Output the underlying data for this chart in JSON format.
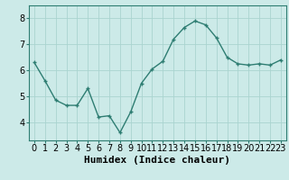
{
  "x": [
    0,
    1,
    2,
    3,
    4,
    5,
    6,
    7,
    8,
    9,
    10,
    11,
    12,
    13,
    14,
    15,
    16,
    17,
    18,
    19,
    20,
    21,
    22,
    23
  ],
  "y": [
    6.3,
    5.6,
    4.85,
    4.65,
    4.65,
    5.3,
    4.2,
    4.25,
    3.6,
    4.4,
    5.5,
    6.05,
    6.35,
    7.2,
    7.65,
    7.9,
    7.75,
    7.25,
    6.5,
    6.25,
    6.2,
    6.25,
    6.2,
    6.4
  ],
  "line_color": "#2e7d72",
  "marker": "+",
  "marker_size": 3,
  "bg_color": "#cceae8",
  "grid_color": "#aad4d0",
  "xlabel": "Humidex (Indice chaleur)",
  "xlabel_fontsize": 8,
  "xlabel_bold": true,
  "ylim": [
    3.3,
    8.5
  ],
  "xlim": [
    -0.5,
    23.5
  ],
  "yticks": [
    4,
    5,
    6,
    7,
    8
  ],
  "xticks": [
    0,
    1,
    2,
    3,
    4,
    5,
    6,
    7,
    8,
    9,
    10,
    11,
    12,
    13,
    14,
    15,
    16,
    17,
    18,
    19,
    20,
    21,
    22,
    23
  ],
  "tick_fontsize": 7,
  "line_width": 1.0
}
